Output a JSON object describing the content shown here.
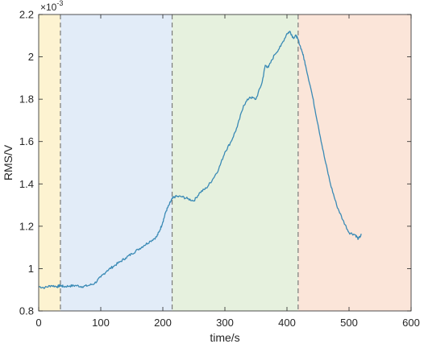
{
  "chart_data": {
    "type": "line",
    "xlabel": "time/s",
    "ylabel": "RMS/V",
    "y_exponent_label": "×10",
    "y_exponent_power": "-3",
    "xlim": [
      0,
      600
    ],
    "ylim": [
      0.8,
      2.2
    ],
    "x_ticks": [
      "0",
      "100",
      "200",
      "300",
      "400",
      "500",
      "600"
    ],
    "y_ticks": [
      "0.8",
      "1",
      "1.2",
      "1.4",
      "1.6",
      "1.8",
      "2",
      "2.2"
    ],
    "grid": false,
    "line_color": "#3a8ab5",
    "regions": [
      {
        "x_start": 0,
        "x_end": 35,
        "color": "#fdf3d1"
      },
      {
        "x_start": 35,
        "x_end": 215,
        "color": "#e2ecf8"
      },
      {
        "x_start": 215,
        "x_end": 418,
        "color": "#e6f1de"
      },
      {
        "x_start": 418,
        "x_end": 600,
        "color": "#fbe5d9"
      }
    ],
    "boundaries": [
      35,
      215,
      418
    ],
    "series": [
      {
        "x": [
          0,
          10,
          20,
          30,
          35,
          40,
          50,
          60,
          70,
          80,
          90,
          100,
          110,
          120,
          130,
          140,
          150,
          160,
          170,
          180,
          190,
          195,
          200,
          205,
          210,
          215,
          220,
          230,
          240,
          250,
          260,
          270,
          280,
          290,
          300,
          310,
          320,
          330,
          340,
          350,
          360,
          365,
          370,
          380,
          390,
          400,
          405,
          410,
          415,
          418,
          425,
          430,
          440,
          450,
          460,
          470,
          480,
          490,
          500,
          510,
          515,
          520
        ],
        "values": [
          0.915,
          0.91,
          0.92,
          0.915,
          0.92,
          0.915,
          0.918,
          0.92,
          0.915,
          0.92,
          0.93,
          0.96,
          0.99,
          1.01,
          1.03,
          1.05,
          1.07,
          1.09,
          1.11,
          1.13,
          1.15,
          1.18,
          1.22,
          1.27,
          1.3,
          1.33,
          1.34,
          1.34,
          1.33,
          1.32,
          1.36,
          1.38,
          1.42,
          1.47,
          1.55,
          1.6,
          1.67,
          1.77,
          1.81,
          1.8,
          1.88,
          1.96,
          1.95,
          2.01,
          2.05,
          2.11,
          2.12,
          2.09,
          2.1,
          2.08,
          2.02,
          1.96,
          1.83,
          1.68,
          1.53,
          1.4,
          1.3,
          1.23,
          1.17,
          1.16,
          1.14,
          1.16
        ]
      }
    ]
  }
}
